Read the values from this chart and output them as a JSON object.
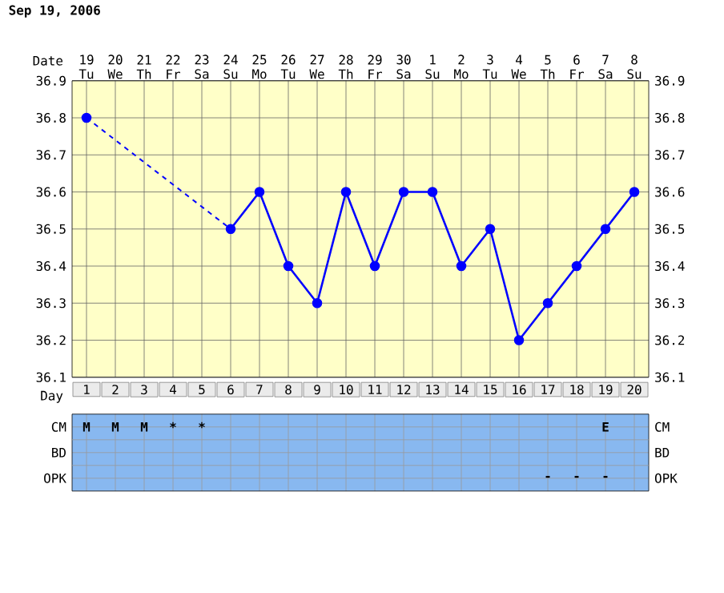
{
  "chart_data": [
    {
      "type": "line",
      "title": "Sep 19, 2006",
      "xlabel": "Day",
      "x2label": "Date",
      "color": "#0000ff",
      "marker": "circle",
      "grid": true,
      "categories": [
        "1",
        "2",
        "3",
        "4",
        "5",
        "6",
        "7",
        "8",
        "9",
        "10",
        "11",
        "12",
        "13",
        "14",
        "15",
        "16",
        "17",
        "18",
        "19",
        "20"
      ],
      "annotations": [
        "19 Tu",
        "20 We",
        "21 Th",
        "22 Fr",
        "23 Sa",
        "24 Su",
        "25 Mo",
        "26 Tu",
        "27 We",
        "28 Th",
        "29 Fr",
        "30 Sa",
        "1 Su",
        "2 Mo",
        "3 Tu",
        "4 We",
        "5 Th",
        "6 Fr",
        "7 Sa",
        "8 Su"
      ],
      "values": [
        36.8,
        null,
        null,
        null,
        null,
        36.5,
        36.6,
        36.4,
        36.3,
        36.6,
        36.4,
        36.6,
        36.6,
        36.4,
        36.5,
        36.2,
        36.3,
        36.4,
        36.5,
        36.6
      ],
      "ylim": [
        36.1,
        36.9
      ],
      "yticks": [
        36.1,
        36.2,
        36.3,
        36.4,
        36.5,
        36.6,
        36.7,
        36.8,
        36.9
      ],
      "y2lim": [
        36.1,
        36.9
      ],
      "y2ticks": [
        36.1,
        36.2,
        36.3,
        36.4,
        36.5,
        36.6,
        36.7,
        36.8,
        36.9
      ]
    },
    {
      "type": "heatmap",
      "grid": true,
      "categories": [
        null,
        null,
        null,
        null,
        null,
        null,
        null,
        null,
        null,
        null,
        null,
        null,
        null,
        null,
        null,
        null,
        null,
        null,
        null,
        null
      ],
      "y_categories": [
        "CM",
        "BD",
        "OPK"
      ],
      "y2_categories": [
        "CM",
        "BD",
        "OPK"
      ],
      "cells": [
        [
          null,
          null,
          null,
          null,
          null,
          null,
          null,
          null,
          null,
          null,
          null,
          null,
          null,
          null,
          null,
          null,
          null,
          null,
          null,
          null
        ],
        [
          null,
          null,
          null,
          null,
          null,
          null,
          null,
          null,
          null,
          null,
          null,
          null,
          null,
          null,
          null,
          null,
          null,
          null,
          null,
          null
        ],
        [
          null,
          null,
          null,
          null,
          null,
          null,
          null,
          null,
          null,
          null,
          null,
          null,
          null,
          null,
          null,
          null,
          null,
          null,
          null,
          null
        ]
      ],
      "cell_labels": [
        [
          "M",
          "M",
          "M",
          "*",
          "*",
          null,
          null,
          null,
          null,
          null,
          null,
          null,
          null,
          null,
          null,
          null,
          null,
          null,
          "E",
          null
        ],
        [
          null,
          null,
          null,
          null,
          null,
          null,
          null,
          null,
          null,
          null,
          null,
          null,
          null,
          null,
          null,
          null,
          null,
          null,
          null,
          null
        ],
        [
          null,
          null,
          null,
          null,
          null,
          null,
          null,
          null,
          null,
          null,
          null,
          null,
          null,
          null,
          null,
          null,
          "-",
          "-",
          "-",
          null
        ]
      ]
    }
  ]
}
